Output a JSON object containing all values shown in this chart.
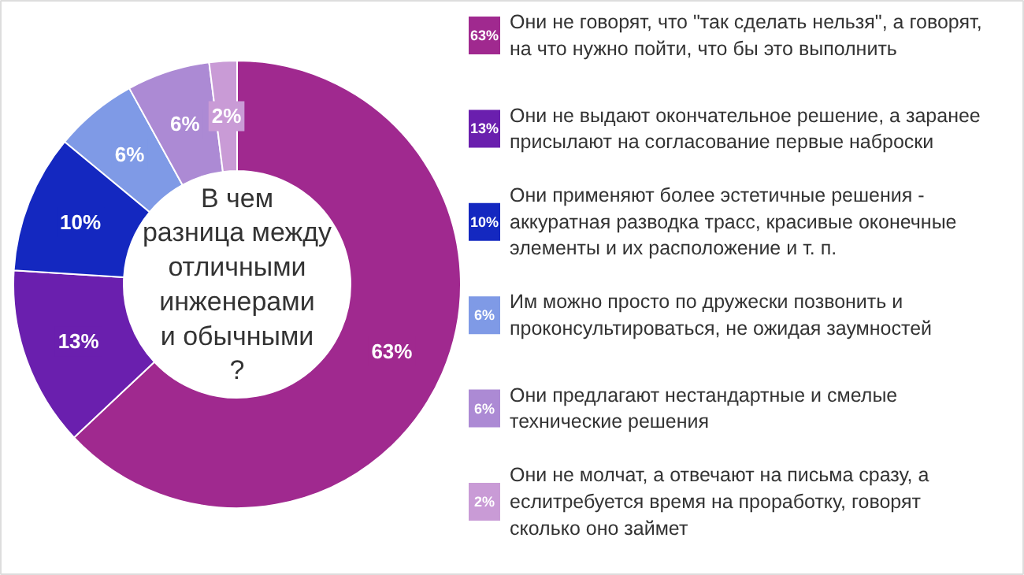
{
  "chart_data": {
    "type": "donut",
    "title": "В чем\nразница между\nотличными\nинженерами\nи обычными\n?",
    "categories": [
      "Они не говорят, что \"так сделать нельзя\", а говорят,\nна что нужно пойти, что бы это выполнить",
      "Они не выдают окончательное решение, а заранее\nприсылают на согласование первые наброски",
      "Они применяют более эстетичные решения -\nаккуратная разводка трасс, красивые оконечные\nэлементы и их расположение и т. п.",
      "Им можно просто по дружески позвонить и\nпроконсультироваться, не ожидая заумностей",
      "Они предлагают нестандартные и смелые\nтехнические решения",
      "Они не молчат, а отвечают на письма сразу, а\nеслитребуется время на проработку, говорят\nсколько оно займет"
    ],
    "values": [
      63,
      13,
      10,
      6,
      6,
      2
    ],
    "value_labels": [
      "63%",
      "13%",
      "10%",
      "6%",
      "6%",
      "2%"
    ],
    "colors": [
      "#a0298f",
      "#6a1fae",
      "#1428c0",
      "#7f9ae6",
      "#ac8ad4",
      "#c99bd6"
    ],
    "legend": "right"
  }
}
